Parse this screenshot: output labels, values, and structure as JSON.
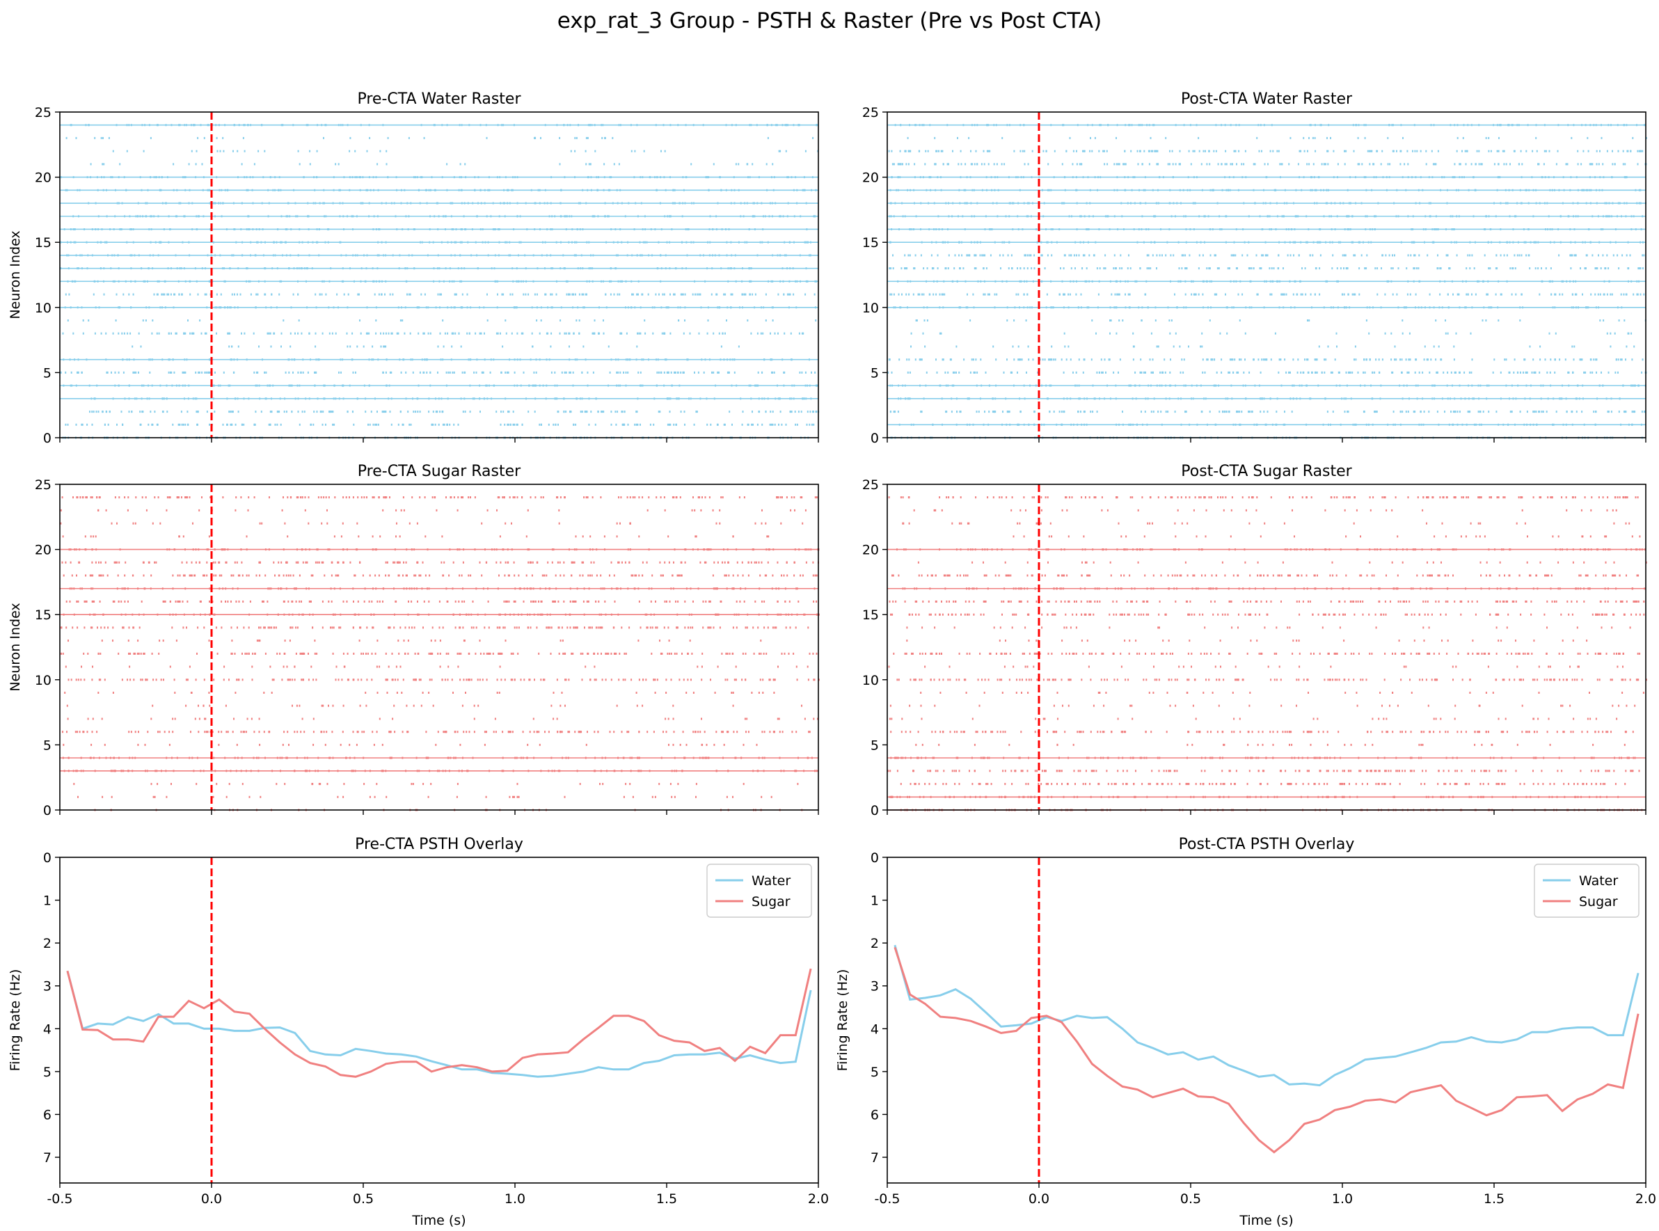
{
  "figure": {
    "suptitle": "exp_rat_3 Group - PSTH & Raster (Pre vs Post CTA)"
  },
  "colors": {
    "water": "#87ceeb",
    "sugar": "#f08080",
    "stimulus_line": "#ff0000"
  },
  "chart_data": [
    {
      "id": "pre_water_raster",
      "type": "raster",
      "title": "Pre-CTA Water Raster",
      "xlabel": "",
      "ylabel": "Neuron Index",
      "xlim": [
        -0.5,
        2.0
      ],
      "ylim": [
        25,
        0
      ],
      "xticks": [],
      "yticks": [
        "0",
        "5",
        "10",
        "15",
        "20",
        "25"
      ],
      "stimulus_time": 0.0,
      "series_color": "water",
      "dense_rows": [
        3,
        4,
        6,
        10,
        12,
        13,
        14,
        15,
        16,
        17,
        18,
        19,
        20,
        24
      ],
      "medium_rows": [
        0,
        1,
        2,
        5,
        8,
        11
      ],
      "sparse_rows": [
        7,
        9,
        21,
        22,
        23
      ]
    },
    {
      "id": "post_water_raster",
      "type": "raster",
      "title": "Post-CTA Water Raster",
      "xlabel": "",
      "ylabel": "",
      "xlim": [
        -0.5,
        2.0
      ],
      "ylim": [
        25,
        0
      ],
      "xticks": [],
      "yticks": [
        "0",
        "5",
        "10",
        "15",
        "20",
        "25"
      ],
      "stimulus_time": 0.0,
      "series_color": "water",
      "dense_rows": [
        0,
        1,
        3,
        4,
        10,
        12,
        15,
        16,
        17,
        18,
        19,
        20,
        24
      ],
      "medium_rows": [
        2,
        5,
        6,
        11,
        13,
        14,
        21,
        22
      ],
      "sparse_rows": [
        7,
        8,
        9,
        23
      ]
    },
    {
      "id": "pre_sugar_raster",
      "type": "raster",
      "title": "Pre-CTA Sugar Raster",
      "xlabel": "",
      "ylabel": "Neuron Index",
      "xlim": [
        -0.5,
        2.0
      ],
      "ylim": [
        25,
        0
      ],
      "xticks": [],
      "yticks": [
        "0",
        "5",
        "10",
        "15",
        "20",
        "25"
      ],
      "stimulus_time": 0.0,
      "series_color": "sugar",
      "dense_rows": [
        3,
        4,
        15,
        17,
        20
      ],
      "medium_rows": [
        6,
        10,
        12,
        14,
        16,
        18,
        19,
        24
      ],
      "sparse_rows": [
        0,
        1,
        2,
        5,
        7,
        8,
        9,
        11,
        13,
        21,
        22,
        23
      ]
    },
    {
      "id": "post_sugar_raster",
      "type": "raster",
      "title": "Post-CTA Sugar Raster",
      "xlabel": "",
      "ylabel": "",
      "xlim": [
        -0.5,
        2.0
      ],
      "ylim": [
        25,
        0
      ],
      "xticks": [],
      "yticks": [
        "0",
        "5",
        "10",
        "15",
        "20",
        "25"
      ],
      "stimulus_time": 0.0,
      "series_color": "sugar",
      "dense_rows": [
        0,
        1,
        4,
        17,
        20
      ],
      "medium_rows": [
        2,
        3,
        6,
        10,
        12,
        15,
        16,
        18,
        24
      ],
      "sparse_rows": [
        5,
        7,
        8,
        9,
        11,
        13,
        14,
        19,
        21,
        22,
        23
      ]
    },
    {
      "id": "pre_psth",
      "type": "line",
      "title": "Pre-CTA PSTH Overlay",
      "xlabel": "Time (s)",
      "ylabel": "Firing Rate (Hz)",
      "xlim": [
        -0.5,
        2.0
      ],
      "ylim": [
        0,
        7.6
      ],
      "xticks": [
        "-0.5",
        "0.0",
        "0.5",
        "1.0",
        "1.5",
        "2.0"
      ],
      "yticks": [
        "0",
        "1",
        "2",
        "3",
        "4",
        "5",
        "6",
        "7"
      ],
      "stimulus_time": 0.0,
      "legend": "top-right",
      "x_start": -0.475,
      "x_step": 0.05,
      "series": [
        {
          "name": "Water",
          "color": "water",
          "values": [
            2.65,
            4.0,
            3.88,
            3.9,
            3.73,
            3.82,
            3.66,
            3.88,
            3.88,
            4.0,
            4.0,
            4.05,
            4.05,
            3.98,
            3.97,
            4.1,
            4.52,
            4.6,
            4.62,
            4.47,
            4.52,
            4.58,
            4.6,
            4.65,
            4.76,
            4.85,
            4.95,
            4.95,
            5.03,
            5.05,
            5.08,
            5.12,
            5.1,
            5.05,
            5.0,
            4.9,
            4.95,
            4.95,
            4.8,
            4.75,
            4.62,
            4.6,
            4.6,
            4.56,
            4.7,
            4.62,
            4.72,
            4.8,
            4.77,
            3.1
          ]
        },
        {
          "name": "Sugar",
          "color": "sugar",
          "values": [
            2.65,
            4.02,
            4.03,
            4.25,
            4.25,
            4.3,
            3.72,
            3.72,
            3.35,
            3.52,
            3.32,
            3.6,
            3.65,
            4.0,
            4.32,
            4.6,
            4.8,
            4.88,
            5.08,
            5.12,
            5.0,
            4.82,
            4.77,
            4.77,
            5.0,
            4.9,
            4.85,
            4.9,
            5.0,
            4.98,
            4.68,
            4.6,
            4.58,
            4.55,
            4.25,
            3.98,
            3.7,
            3.7,
            3.82,
            4.15,
            4.28,
            4.32,
            4.52,
            4.45,
            4.75,
            4.42,
            4.57,
            4.15,
            4.15,
            2.6
          ]
        }
      ]
    },
    {
      "id": "post_psth",
      "type": "line",
      "title": "Post-CTA PSTH Overlay",
      "xlabel": "Time (s)",
      "ylabel": "Firing Rate (Hz)",
      "xlim": [
        -0.5,
        2.0
      ],
      "ylim": [
        0,
        7.6
      ],
      "xticks": [
        "-0.5",
        "0.0",
        "0.5",
        "1.0",
        "1.5",
        "2.0"
      ],
      "yticks": [
        "0",
        "1",
        "2",
        "3",
        "4",
        "5",
        "6",
        "7"
      ],
      "stimulus_time": 0.0,
      "legend": "top-right",
      "x_start": -0.475,
      "x_step": 0.05,
      "series": [
        {
          "name": "Water",
          "color": "water",
          "values": [
            2.05,
            3.32,
            3.28,
            3.22,
            3.08,
            3.3,
            3.62,
            3.95,
            3.92,
            3.88,
            3.73,
            3.82,
            3.7,
            3.75,
            3.73,
            4.0,
            4.32,
            4.45,
            4.6,
            4.55,
            4.72,
            4.65,
            4.85,
            4.98,
            5.12,
            5.08,
            5.3,
            5.28,
            5.32,
            5.08,
            4.92,
            4.72,
            4.68,
            4.65,
            4.55,
            4.45,
            4.32,
            4.3,
            4.2,
            4.3,
            4.32,
            4.25,
            4.08,
            4.08,
            4.0,
            3.97,
            3.97,
            4.15,
            4.15,
            2.7
          ]
        },
        {
          "name": "Sugar",
          "color": "sugar",
          "values": [
            2.1,
            3.2,
            3.42,
            3.72,
            3.75,
            3.82,
            3.95,
            4.1,
            4.05,
            3.75,
            3.7,
            3.85,
            4.3,
            4.82,
            5.1,
            5.35,
            5.42,
            5.6,
            5.5,
            5.4,
            5.58,
            5.6,
            5.75,
            6.2,
            6.6,
            6.88,
            6.6,
            6.22,
            6.12,
            5.9,
            5.82,
            5.68,
            5.65,
            5.72,
            5.48,
            5.4,
            5.32,
            5.68,
            5.85,
            6.02,
            5.9,
            5.6,
            5.58,
            5.55,
            5.92,
            5.65,
            5.52,
            5.3,
            5.38,
            3.65
          ]
        }
      ]
    }
  ]
}
